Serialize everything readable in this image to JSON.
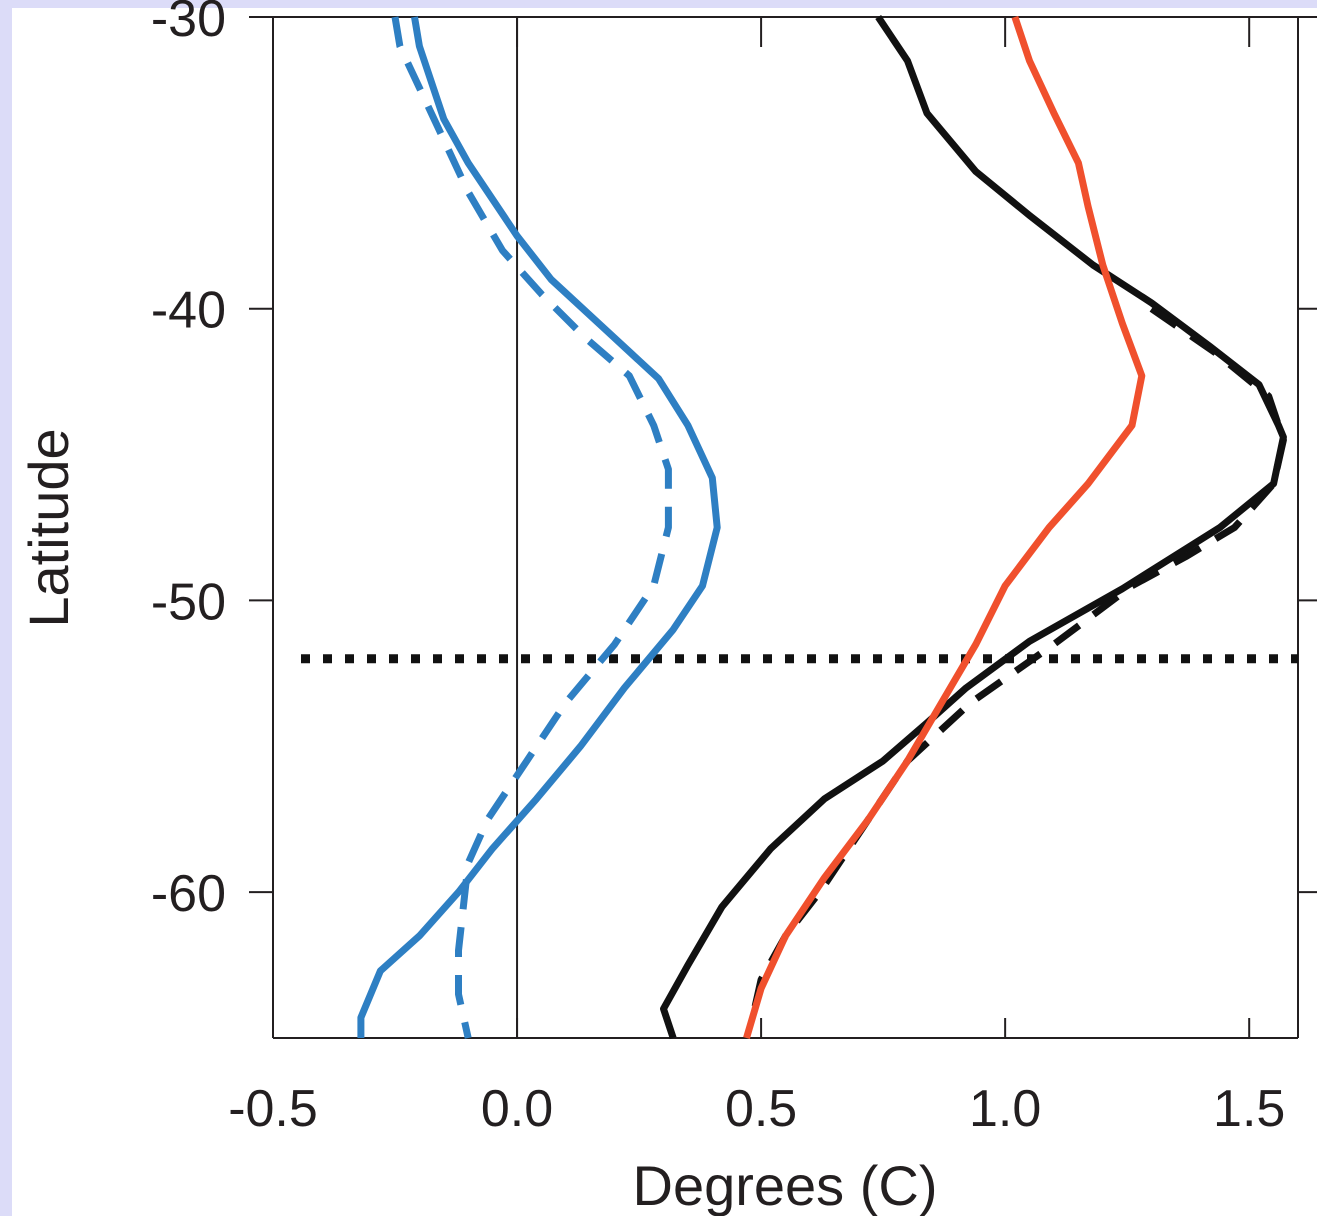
{
  "chart_data": {
    "type": "line",
    "xlabel": "Degrees (C)",
    "ylabel": "Latitude",
    "xlim": [
      -0.5,
      1.6
    ],
    "ylim": [
      -65,
      -30
    ],
    "xticks": [
      -0.5,
      0.0,
      0.5,
      1.0,
      1.5
    ],
    "xtick_labels": [
      "-0.5",
      "0.0",
      "0.5",
      "1.0",
      "1.5"
    ],
    "yticks": [
      -30,
      -40,
      -50,
      -60
    ],
    "ytick_labels": [
      "-30",
      "-40",
      "-50",
      "-60"
    ],
    "zero_line_x": 0.0,
    "reference_line_y": -52,
    "grid": false,
    "series": [
      {
        "color": "#2e7fc3",
        "dash": "solid",
        "x": [
          -0.21,
          -0.2,
          -0.15,
          -0.1,
          0.0,
          0.07,
          0.18,
          0.29,
          0.35,
          0.4,
          0.41,
          0.38,
          0.32,
          0.22,
          0.13,
          0.04,
          -0.05,
          -0.12,
          -0.2,
          -0.28,
          -0.32,
          -0.32
        ],
        "y": [
          -30,
          -31,
          -33.5,
          -35,
          -37.5,
          -39,
          -40.7,
          -42.4,
          -44,
          -45.8,
          -47.5,
          -49.5,
          -51,
          -53,
          -55,
          -56.8,
          -58.5,
          -60,
          -61.5,
          -62.7,
          -64.3,
          -65
        ]
      },
      {
        "color": "#2e7fc3",
        "dash": "dashed",
        "x": [
          -0.25,
          -0.24,
          -0.17,
          -0.1,
          -0.03,
          0.05,
          0.14,
          0.23,
          0.28,
          0.31,
          0.31,
          0.28,
          0.2,
          0.1,
          0.02,
          -0.06,
          -0.1,
          -0.12,
          -0.12,
          -0.1
        ],
        "y": [
          -30,
          -31,
          -33.5,
          -36,
          -38,
          -39.5,
          -41,
          -42.3,
          -44,
          -45.5,
          -47.5,
          -49.5,
          -51.5,
          -53.5,
          -55.5,
          -57.5,
          -59,
          -62,
          -63.5,
          -65
        ]
      },
      {
        "color": "#111111",
        "dash": "solid",
        "x": [
          0.74,
          0.8,
          0.84,
          0.94,
          1.05,
          1.18,
          1.3,
          1.42,
          1.52,
          1.56,
          1.57,
          1.55,
          1.44,
          1.24,
          1.05,
          0.92,
          0.84,
          0.75,
          0.63,
          0.52,
          0.42,
          0.35,
          0.3,
          0.32
        ],
        "y": [
          -30,
          -31.5,
          -33.3,
          -35.3,
          -36.8,
          -38.5,
          -39.8,
          -41.3,
          -42.6,
          -44,
          -44.4,
          -46,
          -47.5,
          -49.6,
          -51.4,
          -53,
          -54.2,
          -55.5,
          -56.8,
          -58.5,
          -60.5,
          -62.5,
          -64,
          -65
        ]
      },
      {
        "color": "#111111",
        "dash": "dashed",
        "x": [
          1.3,
          1.43,
          1.54,
          1.57,
          1.55,
          1.47,
          1.37,
          1.26,
          1.1,
          0.93,
          0.8,
          0.72,
          0.62,
          0.55,
          0.5,
          0.48
        ],
        "y": [
          -40,
          -41.5,
          -43,
          -44.5,
          -46,
          -47.5,
          -48.5,
          -49.5,
          -51.5,
          -53.5,
          -55.5,
          -57.5,
          -60,
          -61.5,
          -63,
          -64.5
        ]
      },
      {
        "color": "#f0502d",
        "dash": "solid",
        "x": [
          1.02,
          1.05,
          1.1,
          1.15,
          1.17,
          1.2,
          1.24,
          1.28,
          1.26,
          1.17,
          1.09,
          1.0,
          0.94,
          0.87,
          0.8,
          0.72,
          0.63,
          0.55,
          0.5,
          0.47
        ],
        "y": [
          -30,
          -31.5,
          -33.3,
          -35,
          -36.5,
          -38.5,
          -40.5,
          -42.3,
          -44,
          -46,
          -47.5,
          -49.5,
          -51.5,
          -53.5,
          -55.5,
          -57.5,
          -59.5,
          -61.5,
          -63.3,
          -65
        ]
      }
    ]
  }
}
